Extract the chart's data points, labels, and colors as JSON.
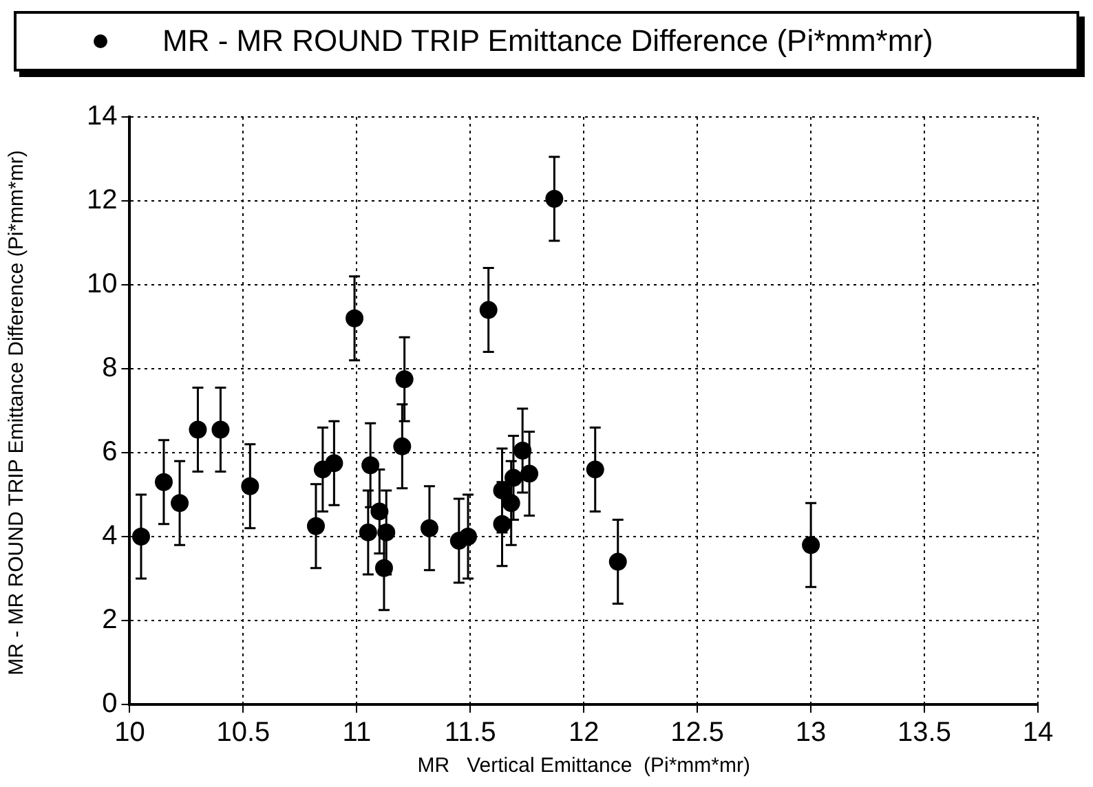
{
  "chart_data": {
    "type": "scatter",
    "xlabel": "MR   Vertical Emittance  (Pi*mm*mr)",
    "ylabel": "MR - MR ROUND TRIP Emittance Difference (Pi*mm*mr)",
    "xlim": [
      10,
      14
    ],
    "xticks": [
      10,
      10.5,
      11,
      11.5,
      12,
      12.5,
      13,
      13.5,
      14
    ],
    "ylim": [
      0,
      14
    ],
    "yticks": [
      0,
      2,
      4,
      6,
      8,
      10,
      12,
      14
    ],
    "grid": true,
    "legend": "top",
    "marker": "circle",
    "series": [
      {
        "name": "MR - MR ROUND TRIP Emittance Difference (Pi*mm*mr)",
        "color": "#000000",
        "x": [
          10.05,
          10.15,
          10.22,
          10.3,
          10.4,
          10.53,
          10.82,
          10.85,
          10.9,
          10.99,
          11.05,
          11.06,
          11.1,
          11.12,
          11.13,
          11.21,
          11.2,
          11.32,
          11.45,
          11.49,
          11.58,
          11.64,
          11.64,
          11.68,
          11.69,
          11.73,
          11.76,
          11.87,
          12.05,
          12.15,
          13.0
        ],
        "values": [
          4.0,
          5.3,
          4.8,
          6.55,
          6.55,
          5.2,
          4.25,
          5.6,
          5.75,
          9.2,
          4.1,
          5.7,
          4.6,
          3.25,
          4.1,
          7.75,
          6.15,
          4.2,
          3.9,
          4.0,
          9.4,
          5.1,
          4.3,
          4.8,
          5.4,
          6.05,
          5.5,
          12.05,
          5.6,
          3.4,
          3.8
        ],
        "errors": [
          1,
          1,
          1,
          1,
          1,
          1,
          1,
          1,
          1,
          1,
          1,
          1,
          1,
          1,
          1,
          1,
          1,
          1,
          1,
          1,
          1,
          1,
          1,
          1,
          1,
          1,
          1,
          1,
          1,
          1,
          1
        ]
      }
    ]
  }
}
